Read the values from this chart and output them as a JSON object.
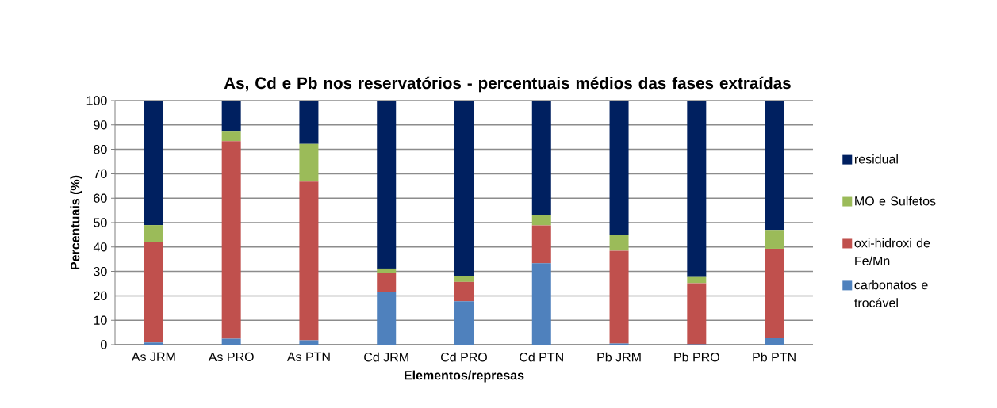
{
  "chart_data": {
    "type": "bar",
    "stacked": true,
    "title": "As, Cd e Pb nos reservatórios - percentuais médios das fases extraídas",
    "xlabel": "Elementos/represas",
    "ylabel": "Percentuais (%)",
    "categories": [
      "As JRM",
      "As PRO",
      "As PTN",
      "Cd JRM",
      "Cd PRO",
      "Cd PTN",
      "Pb JRM",
      "Pb PRO",
      "Pb PTN"
    ],
    "series": [
      {
        "name": "carbonatos e trocável",
        "color": "#4f81bd",
        "values": [
          0.9,
          2.4,
          1.8,
          21.7,
          17.8,
          33.4,
          0.5,
          0.2,
          2.6
        ]
      },
      {
        "name": "oxi-hidroxi de Fe/Mn",
        "color": "#c0504d",
        "values": [
          41.3,
          81.0,
          65.0,
          7.7,
          7.9,
          15.5,
          38.0,
          25.0,
          36.7
        ]
      },
      {
        "name": "MO e Sulfetos",
        "color": "#9bbb59",
        "values": [
          6.8,
          4.2,
          15.4,
          1.8,
          2.5,
          4.1,
          6.5,
          2.5,
          7.7
        ]
      },
      {
        "name": "residual",
        "color": "#002060",
        "values": [
          51.0,
          12.4,
          17.8,
          68.8,
          71.8,
          47.0,
          55.0,
          72.3,
          53.0
        ]
      }
    ],
    "ylim": [
      0,
      100
    ],
    "yticks": [
      0,
      10,
      20,
      30,
      40,
      50,
      60,
      70,
      80,
      90,
      100
    ],
    "grid": "y",
    "legend": "right"
  }
}
